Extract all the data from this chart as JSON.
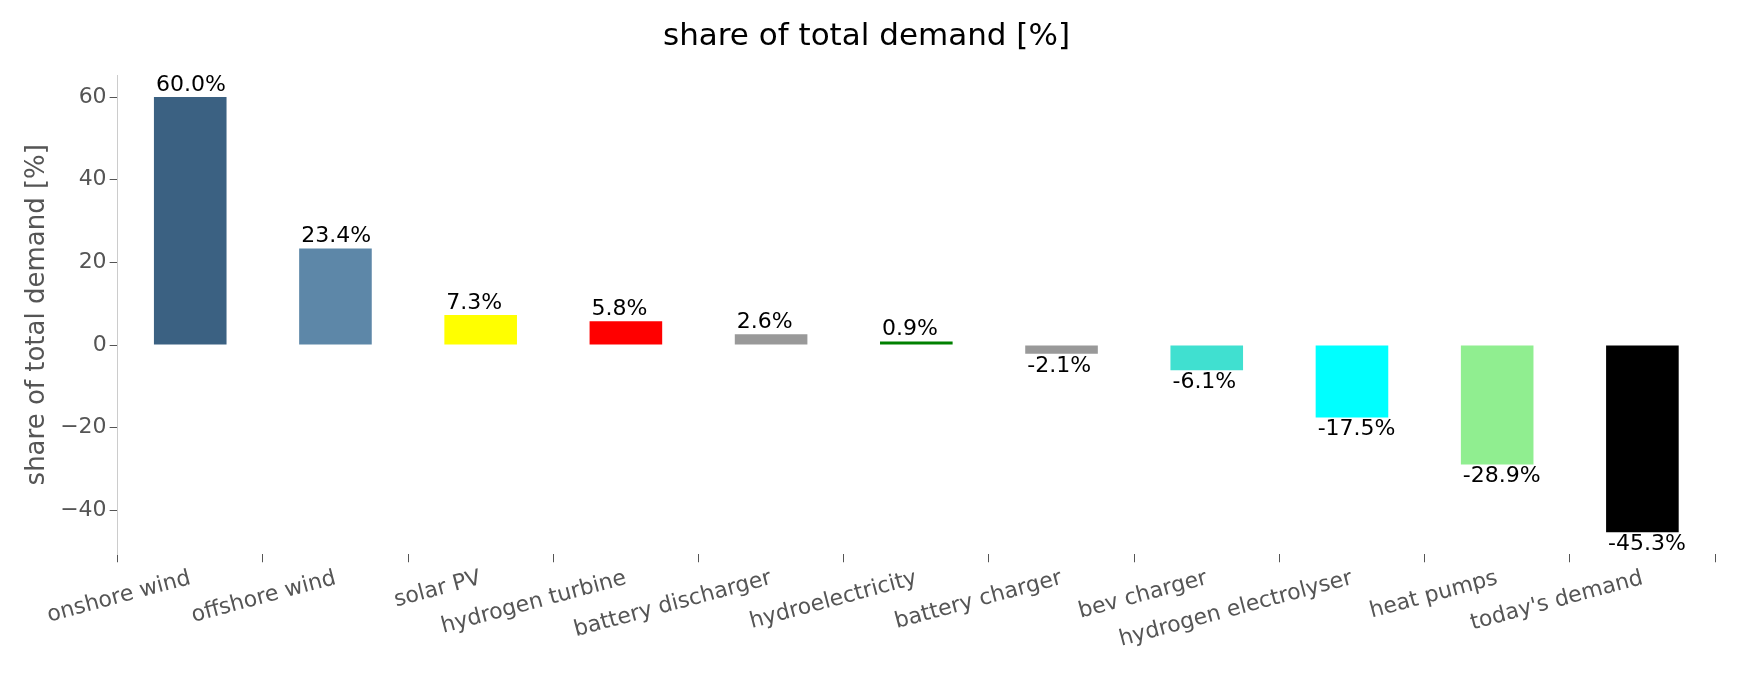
{
  "chart_data": {
    "type": "bar",
    "title": "share of total demand [%]",
    "ylabel": "share of total demand [%]",
    "categories": [
      "onshore wind",
      "offshore wind",
      "solar PV",
      "hydrogen turbine",
      "battery discharger",
      "hydroelectricity",
      "battery charger",
      "bev charger",
      "hydrogen electrolyser",
      "heat pumps",
      "today's demand"
    ],
    "values": [
      60.0,
      23.4,
      7.3,
      5.8,
      2.6,
      0.9,
      -2.1,
      -6.1,
      -17.5,
      -28.9,
      -45.3
    ],
    "colors": [
      "#3b6182",
      "#5d87a8",
      "#ffff00",
      "#ff0000",
      "#999999",
      "#008000",
      "#999999",
      "#40e0d0",
      "#00ffff",
      "#90ee90",
      "#000000"
    ],
    "value_labels": [
      "60.0%",
      "23.4%",
      "7.3%",
      "5.8%",
      "2.6%",
      "0.9%",
      "-2.1%",
      "-6.1%",
      "-17.5%",
      "-28.9%",
      "-45.3%"
    ],
    "ylim": [
      -50.6,
      65.3
    ],
    "yticks": [
      {
        "value": -40,
        "label": "−40"
      },
      {
        "value": -20,
        "label": "−20"
      },
      0,
      20,
      40,
      60
    ],
    "grid": false,
    "legend": false
  }
}
